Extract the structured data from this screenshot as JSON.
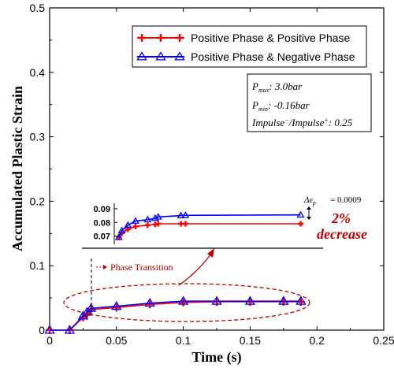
{
  "chart_data": {
    "type": "line",
    "xlabel": "Time (s)",
    "ylabel": "Accumulated Plastic Strain",
    "xlim": [
      0,
      0.25
    ],
    "ylim": [
      0,
      0.5
    ],
    "xticks": [
      "0",
      "0.05",
      "0.1",
      "0.15",
      "0.2",
      "0.25"
    ],
    "yticks": [
      "0",
      "0.1",
      "0.2",
      "0.3",
      "0.4",
      "0.5"
    ],
    "legend_position": "top-right",
    "series": [
      {
        "name": "Positive Phase & Positive Phase",
        "color": "#ff0000",
        "marker": "plus",
        "x": [
          0,
          0.015,
          0.025,
          0.028,
          0.031,
          0.05,
          0.075,
          0.1,
          0.125,
          0.15,
          0.175,
          0.188
        ],
        "y": [
          0,
          0,
          0.02,
          0.025,
          0.032,
          0.035,
          0.04,
          0.043,
          0.044,
          0.044,
          0.044,
          0.044
        ]
      },
      {
        "name": "Positive Phase & Negative Phase",
        "color": "#0000ff",
        "marker": "triangle",
        "x": [
          0,
          0.015,
          0.025,
          0.028,
          0.031,
          0.05,
          0.075,
          0.1,
          0.125,
          0.15,
          0.175,
          0.188
        ],
        "y": [
          0,
          0,
          0.022,
          0.028,
          0.034,
          0.037,
          0.042,
          0.045,
          0.045,
          0.045,
          0.045,
          0.045
        ]
      }
    ],
    "inset": {
      "yticks": [
        "0.09",
        "0.08",
        "0.07"
      ],
      "ylim": [
        0.064,
        0.094
      ],
      "xlim": [
        0.07,
        0.2
      ],
      "series": [
        {
          "color": "#ff0000",
          "marker": "plus",
          "x": [
            0.073,
            0.075,
            0.079,
            0.084,
            0.092,
            0.097,
            0.099,
            0.114,
            0.117,
            0.193
          ],
          "y": [
            0.069,
            0.072,
            0.075,
            0.077,
            0.078,
            0.0785,
            0.079,
            0.079,
            0.079,
            0.079
          ]
        },
        {
          "color": "#0000ff",
          "marker": "triangle",
          "x": [
            0.073,
            0.075,
            0.079,
            0.084,
            0.092,
            0.097,
            0.099,
            0.114,
            0.117,
            0.193
          ],
          "y": [
            0.069,
            0.074,
            0.078,
            0.081,
            0.082,
            0.083,
            0.084,
            0.085,
            0.0852,
            0.0855
          ]
        }
      ]
    },
    "annotations": {
      "params": [
        "Pmax: 3.0bar",
        "Pmin: -0.16bar",
        "Impulse−/Impulse+: 0.25"
      ],
      "phase_transition": "Phase Transition",
      "delta": "= 0.0009",
      "decrease_pct": "2%",
      "decrease_word": "decrease"
    }
  }
}
